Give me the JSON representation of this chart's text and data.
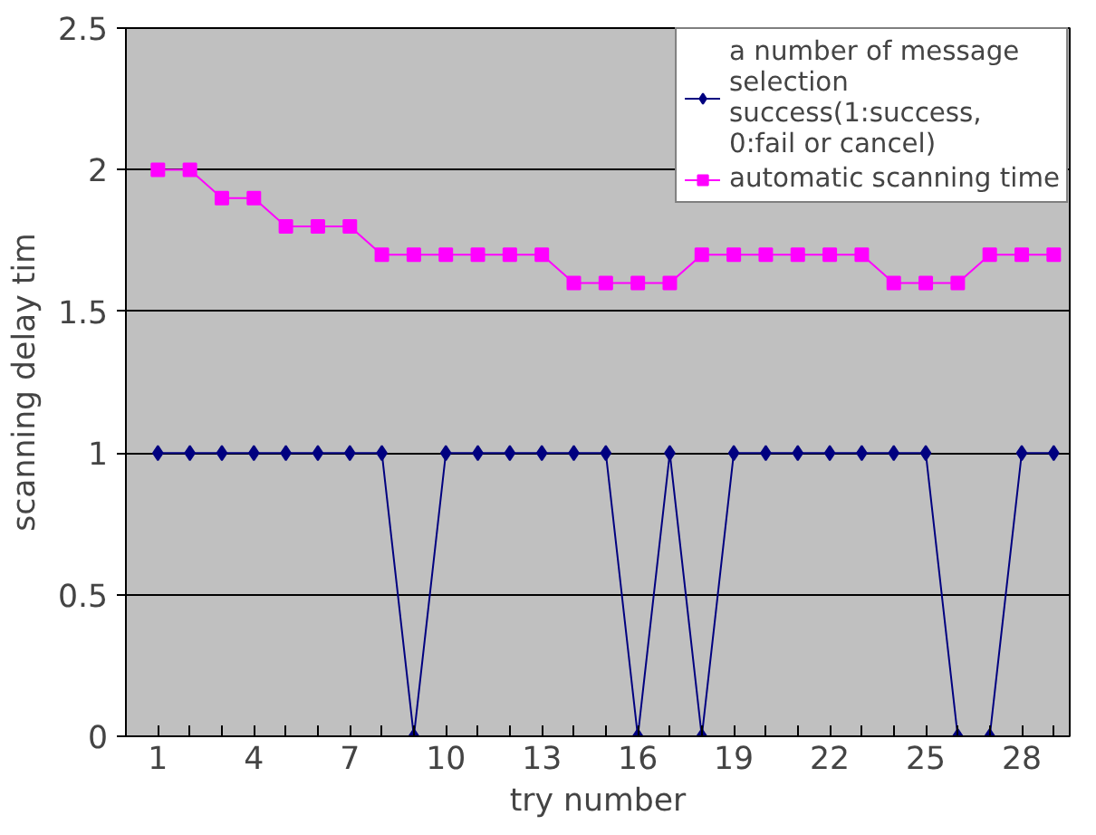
{
  "chart_data": {
    "type": "line",
    "xlabel": "try number",
    "ylabel": "scanning delay tim",
    "x": [
      1,
      2,
      3,
      4,
      5,
      6,
      7,
      8,
      9,
      10,
      11,
      12,
      13,
      14,
      15,
      16,
      17,
      18,
      19,
      20,
      21,
      22,
      23,
      24,
      25,
      26,
      27,
      28,
      29
    ],
    "series": [
      {
        "name": "a number of message selection success(1:success, 0:fail or cancel)",
        "color": "#000080",
        "marker": "diamond",
        "values": [
          1,
          1,
          1,
          1,
          1,
          1,
          1,
          1,
          0,
          1,
          1,
          1,
          1,
          1,
          1,
          0,
          1,
          0,
          1,
          1,
          1,
          1,
          1,
          1,
          1,
          0,
          0,
          1,
          1
        ]
      },
      {
        "name": "automatic scanning time",
        "color": "#ff00ff",
        "marker": "square",
        "values": [
          2,
          2,
          1.9,
          1.9,
          1.8,
          1.8,
          1.8,
          1.7,
          1.7,
          1.7,
          1.7,
          1.7,
          1.7,
          1.6,
          1.6,
          1.6,
          1.6,
          1.7,
          1.7,
          1.7,
          1.7,
          1.7,
          1.7,
          1.6,
          1.6,
          1.6,
          1.7,
          1.7,
          1.7
        ]
      }
    ],
    "xlim": [
      0,
      29.5
    ],
    "ylim": [
      0,
      2.5
    ],
    "xticks": [
      1,
      {
        "value": 2,
        "label": null
      },
      {
        "value": 3,
        "label": null
      },
      4,
      {
        "value": 5,
        "label": null
      },
      {
        "value": 6,
        "label": null
      },
      7,
      {
        "value": 8,
        "label": null
      },
      {
        "value": 9,
        "label": null
      },
      10,
      {
        "value": 11,
        "label": null
      },
      {
        "value": 12,
        "label": null
      },
      13,
      {
        "value": 14,
        "label": null
      },
      {
        "value": 15,
        "label": null
      },
      16,
      {
        "value": 17,
        "label": null
      },
      {
        "value": 18,
        "label": null
      },
      19,
      {
        "value": 20,
        "label": null
      },
      {
        "value": 21,
        "label": null
      },
      22,
      {
        "value": 23,
        "label": null
      },
      {
        "value": 24,
        "label": null
      },
      25,
      {
        "value": 26,
        "label": null
      },
      {
        "value": 27,
        "label": null
      },
      28,
      {
        "value": 29,
        "label": null
      }
    ],
    "yticks": [
      0,
      0.5,
      1,
      1.5,
      2,
      2.5
    ],
    "grid": "y",
    "legend": "top right",
    "line_style": "solid"
  }
}
